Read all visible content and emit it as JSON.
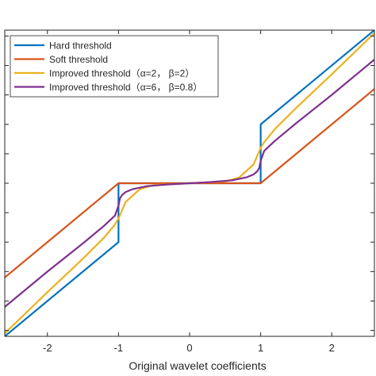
{
  "chart_data": {
    "type": "line",
    "xlabel": "Original wavelet coefficients",
    "xlim": [
      -2.6,
      2.6
    ],
    "ylim": [
      -2.6,
      2.6
    ],
    "grid": false,
    "legend_position": "top-left",
    "x_ticks": [
      -2,
      -1,
      0,
      1,
      2
    ],
    "x_tick_labels": [
      "-2",
      "-1",
      "0",
      "1",
      "2"
    ],
    "threshold": 1,
    "jump_value": 0.4,
    "series": [
      {
        "name": "Hard threshold",
        "color": "#0072BD",
        "x": [
          -2.6,
          -1.0,
          -1.0,
          1.0,
          1.0,
          2.6
        ],
        "y": [
          -2.6,
          -1.0,
          0.0,
          0.0,
          1.0,
          2.6
        ]
      },
      {
        "name": "Soft threshold",
        "color": "#D95319",
        "x": [
          -2.6,
          -1.0,
          1.0,
          2.6
        ],
        "y": [
          -1.6,
          0.0,
          0.0,
          1.6
        ]
      },
      {
        "name": "Improved threshold（α=2， β=2）",
        "color": "#EDB120",
        "x": [
          -2.6,
          -2.0,
          -1.5,
          -1.2,
          -1.05,
          -1.0,
          -0.9,
          -0.7,
          -0.5,
          0.0,
          0.5,
          0.7,
          0.9,
          1.0,
          1.05,
          1.2,
          1.5,
          2.0,
          2.6
        ],
        "y": [
          -2.55,
          -1.85,
          -1.28,
          -0.92,
          -0.7,
          -0.6,
          -0.32,
          -0.1,
          -0.03,
          0.0,
          0.03,
          0.1,
          0.32,
          0.6,
          0.7,
          0.92,
          1.28,
          1.85,
          2.55
        ]
      },
      {
        "name": "Improved threshold（α=6， β=0.8）",
        "color": "#7E2F8E",
        "x": [
          -2.6,
          -2.0,
          -1.5,
          -1.2,
          -1.05,
          -1.0,
          -0.98,
          -0.95,
          -0.9,
          -0.8,
          -0.6,
          -0.3,
          0.0,
          0.3,
          0.6,
          0.8,
          0.9,
          0.95,
          0.98,
          1.0,
          1.05,
          1.2,
          1.5,
          2.0,
          2.6
        ],
        "y": [
          -2.1,
          -1.5,
          -1.02,
          -0.72,
          -0.55,
          -0.38,
          -0.26,
          -0.2,
          -0.15,
          -0.1,
          -0.05,
          -0.02,
          0.0,
          0.02,
          0.05,
          0.1,
          0.15,
          0.2,
          0.26,
          0.38,
          0.55,
          0.72,
          1.02,
          1.5,
          2.1
        ]
      }
    ]
  }
}
